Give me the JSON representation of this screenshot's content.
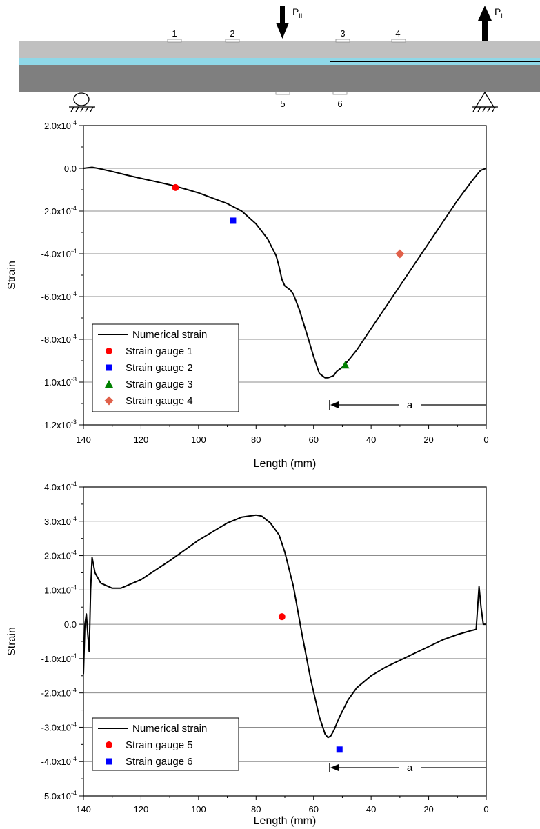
{
  "schematic": {
    "load_labels": [
      "P",
      "II",
      "P",
      "I"
    ],
    "top_gauges": [
      "1",
      "2",
      "3",
      "4"
    ],
    "bottom_gauges": [
      "5",
      "6"
    ],
    "colors": {
      "upper_arm": "#c0c0c0",
      "adhesive": "#8fd8e8",
      "lower_arm": "#7f7f7f"
    }
  },
  "chart_data": [
    {
      "type": "line",
      "title": "",
      "xlabel": "Length (mm)",
      "ylabel": "Strain",
      "xlim": [
        140,
        0
      ],
      "ylim": [
        -0.0012,
        0.0002
      ],
      "x_ticks": [
        "140",
        "120",
        "100",
        "80",
        "60",
        "40",
        "20",
        "0"
      ],
      "y_ticks": [
        "2.0x10",
        "0.0",
        "-2.0x10",
        "-4.0x10",
        "-6.0x10",
        "-8.0x10",
        "-1.0x10",
        "-1.2x10"
      ],
      "y_tick_exps": [
        "-4",
        "",
        "-4",
        "-4",
        "-4",
        "-4",
        "-3",
        "-3"
      ],
      "grid": "horizontal",
      "legend": "bottom-left",
      "crack_label": "a",
      "series": [
        {
          "name": "Numerical strain",
          "kind": "line",
          "color": "#000000",
          "x": [
            140,
            137,
            135,
            130,
            125,
            120,
            115,
            110,
            105,
            100,
            95,
            90,
            85,
            80,
            76,
            73,
            72,
            71,
            70,
            68,
            67,
            65,
            62,
            60,
            58,
            56,
            55,
            53,
            52,
            50,
            48,
            45,
            40,
            35,
            30,
            25,
            20,
            15,
            10,
            5,
            2,
            0
          ],
          "y": [
            0.0,
            5e-06,
            0.0,
            -1.5e-05,
            -3.2e-05,
            -4.7e-05,
            -6.2e-05,
            -7.7e-05,
            -9.5e-05,
            -0.000115,
            -0.00014,
            -0.000165,
            -0.0002,
            -0.00026,
            -0.00033,
            -0.00041,
            -0.00046,
            -0.00052,
            -0.00055,
            -0.00057,
            -0.00059,
            -0.00066,
            -0.00079,
            -0.00088,
            -0.00096,
            -0.00098,
            -0.00098,
            -0.00097,
            -0.00095,
            -0.00093,
            -0.0009,
            -0.00085,
            -0.00075,
            -0.00065,
            -0.00055,
            -0.00045,
            -0.00035,
            -0.00025,
            -0.00015,
            -6e-05,
            -1e-05,
            0.0
          ]
        },
        {
          "name": "Strain gauge 1",
          "kind": "marker",
          "marker": "circle",
          "color": "#ff0000",
          "x": [
            108
          ],
          "y": [
            -9e-05
          ]
        },
        {
          "name": "Strain gauge 2",
          "kind": "marker",
          "marker": "square",
          "color": "#0000ff",
          "x": [
            88
          ],
          "y": [
            -0.000245
          ]
        },
        {
          "name": "Strain gauge 3",
          "kind": "marker",
          "marker": "triangle",
          "color": "#008000",
          "x": [
            49
          ],
          "y": [
            -0.00092
          ]
        },
        {
          "name": "Strain gauge 4",
          "kind": "marker",
          "marker": "diamond",
          "color": "#e0604a",
          "x": [
            30
          ],
          "y": [
            -0.0004
          ]
        }
      ]
    },
    {
      "type": "line",
      "title": "",
      "xlabel": "Length (mm)",
      "ylabel": "Strain",
      "xlim": [
        140,
        0
      ],
      "ylim": [
        -0.0005,
        0.0004
      ],
      "x_ticks": [
        "140",
        "120",
        "100",
        "80",
        "60",
        "40",
        "20",
        "0"
      ],
      "y_ticks": [
        "4.0x10",
        "3.0x10",
        "2.0x10",
        "1.0x10",
        "0.0",
        "-1.0x10",
        "-2.0x10",
        "-3.0x10",
        "-4.0x10",
        "-5.0x10"
      ],
      "y_tick_exps": [
        "-4",
        "-4",
        "-4",
        "-4",
        "",
        "-4",
        "-4",
        "-4",
        "-4",
        "-4"
      ],
      "grid": "horizontal",
      "legend": "bottom-left",
      "crack_label": "a",
      "series": [
        {
          "name": "Numerical strain",
          "kind": "line",
          "color": "#000000",
          "x": [
            140,
            139.5,
            139,
            138.5,
            138,
            137.5,
            137,
            136,
            134,
            130,
            127,
            120,
            110,
            100,
            90,
            85,
            80,
            78,
            75,
            72,
            70,
            67,
            64,
            61,
            58,
            56,
            55,
            54,
            53,
            51,
            48,
            45,
            40,
            35,
            30,
            25,
            20,
            15,
            10,
            5,
            3.5,
            2.5,
            1.8,
            1,
            0
          ],
          "y": [
            -0.000145,
            0.0,
            3e-05,
            -3e-05,
            -8e-05,
            0.0001,
            0.000195,
            0.00015,
            0.00012,
            0.000105,
            0.000105,
            0.00013,
            0.000185,
            0.000245,
            0.000295,
            0.000312,
            0.000318,
            0.000315,
            0.000295,
            0.00026,
            0.00021,
            0.00011,
            -3e-05,
            -0.00016,
            -0.00027,
            -0.00032,
            -0.00033,
            -0.000325,
            -0.00031,
            -0.00027,
            -0.00022,
            -0.000185,
            -0.00015,
            -0.000125,
            -0.000105,
            -8.5e-05,
            -6.5e-05,
            -4.5e-05,
            -3e-05,
            -1.8e-05,
            -1.5e-05,
            0.00011,
            5e-05,
            0.0,
            0.0
          ]
        },
        {
          "name": "Strain gauge 5",
          "kind": "marker",
          "marker": "circle",
          "color": "#ff0000",
          "x": [
            71
          ],
          "y": [
            2.2e-05
          ]
        },
        {
          "name": "Strain gauge 6",
          "kind": "marker",
          "marker": "square",
          "color": "#0000ff",
          "x": [
            51
          ],
          "y": [
            -0.000365
          ]
        }
      ]
    }
  ]
}
